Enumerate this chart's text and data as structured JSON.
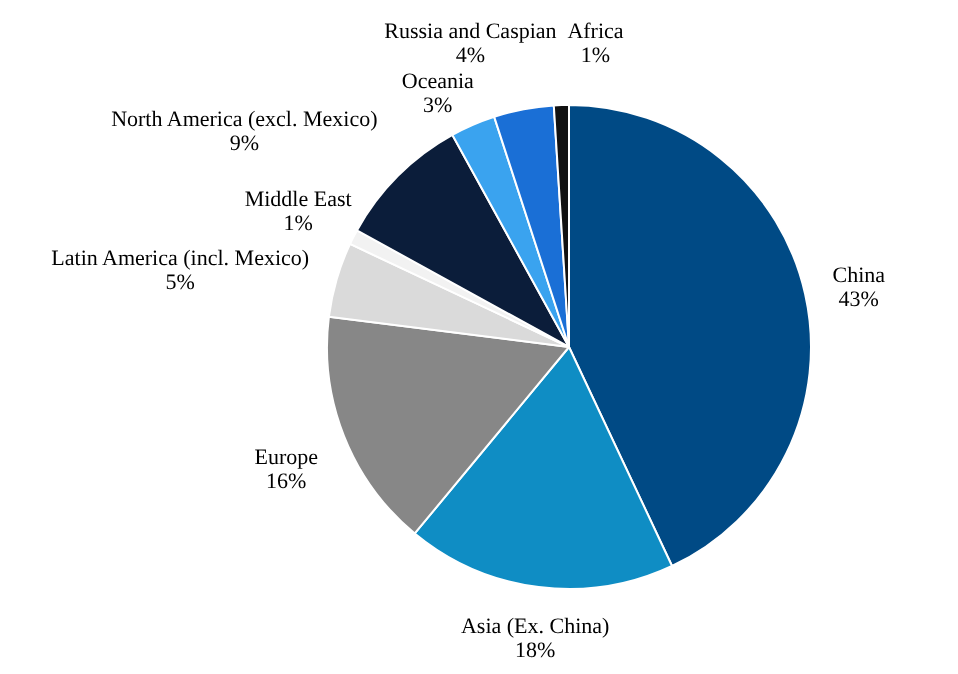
{
  "chart_data": {
    "type": "pie",
    "categories": [
      "China",
      "Asia (Ex. China)",
      "Europe",
      "Latin America (incl. Mexico)",
      "Middle East",
      "North America (excl. Mexico)",
      "Oceania",
      "Russia and Caspian",
      "Africa"
    ],
    "values": [
      43,
      18,
      16,
      5,
      1,
      9,
      3,
      4,
      1
    ],
    "value_labels": [
      "43%",
      "18%",
      "16%",
      "5%",
      "1%",
      "9%",
      "3%",
      "4%",
      "1%"
    ],
    "colors": [
      "#004a85",
      "#0f8dc4",
      "#878787",
      "#dadada",
      "#f2f2f2",
      "#0b1d3a",
      "#3aa3ef",
      "#1a6fd6",
      "#111111"
    ],
    "legend": false
  }
}
